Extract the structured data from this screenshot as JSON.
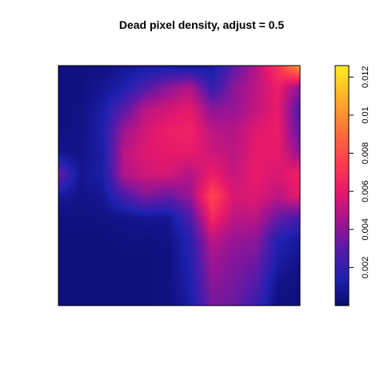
{
  "chart_data": {
    "type": "heatmap",
    "title": "Dead pixel density, adjust =  0.5",
    "xlabel": "",
    "ylabel": "",
    "axes_visible": false,
    "grid": false,
    "colorbar": {
      "position": "right",
      "range": [
        0,
        0.0126
      ],
      "ticks": [
        {
          "value": 0.002,
          "label": "0.002"
        },
        {
          "value": 0.004,
          "label": "0.004"
        },
        {
          "value": 0.006,
          "label": "0.006"
        },
        {
          "value": 0.008,
          "label": "0.008"
        },
        {
          "value": 0.01,
          "label": "0.01"
        },
        {
          "value": 0.012,
          "label": "0.012"
        }
      ],
      "colormap": [
        {
          "value": 0.0,
          "color": "#0a0a6e"
        },
        {
          "value": 0.0015,
          "color": "#1f21b0"
        },
        {
          "value": 0.003,
          "color": "#5a1aa8"
        },
        {
          "value": 0.0045,
          "color": "#a5148f"
        },
        {
          "value": 0.006,
          "color": "#e8196a"
        },
        {
          "value": 0.0075,
          "color": "#ff3c50"
        },
        {
          "value": 0.009,
          "color": "#ff6a3c"
        },
        {
          "value": 0.0105,
          "color": "#ffa12a"
        },
        {
          "value": 0.0126,
          "color": "#ffee22"
        }
      ]
    },
    "density_grid": {
      "rows": 12,
      "cols": 12,
      "origin": "top-left",
      "values": [
        [
          0.0004,
          0.0004,
          0.0005,
          0.0008,
          0.001,
          0.001,
          0.0008,
          0.001,
          0.003,
          0.0048,
          0.0072,
          0.011
        ],
        [
          0.0004,
          0.0004,
          0.0008,
          0.0014,
          0.0028,
          0.004,
          0.0048,
          0.002,
          0.004,
          0.005,
          0.0062,
          0.004
        ],
        [
          0.0004,
          0.0005,
          0.0012,
          0.003,
          0.005,
          0.0055,
          0.006,
          0.004,
          0.0042,
          0.0052,
          0.006,
          0.0026
        ],
        [
          0.0004,
          0.0005,
          0.0014,
          0.0044,
          0.0056,
          0.0062,
          0.0064,
          0.005,
          0.0048,
          0.0058,
          0.0062,
          0.003
        ],
        [
          0.0008,
          0.0006,
          0.0012,
          0.005,
          0.0058,
          0.006,
          0.006,
          0.0054,
          0.005,
          0.006,
          0.006,
          0.0042
        ],
        [
          0.0034,
          0.0008,
          0.0012,
          0.0048,
          0.0054,
          0.0056,
          0.0048,
          0.0062,
          0.0052,
          0.006,
          0.0056,
          0.0064
        ],
        [
          0.001,
          0.0006,
          0.0008,
          0.0026,
          0.0038,
          0.0032,
          0.0042,
          0.0078,
          0.0056,
          0.0058,
          0.005,
          0.006
        ],
        [
          0.0004,
          0.0004,
          0.0005,
          0.0006,
          0.0008,
          0.0008,
          0.0026,
          0.0066,
          0.005,
          0.005,
          0.0032,
          0.0024
        ],
        [
          0.0003,
          0.0003,
          0.0003,
          0.0004,
          0.0004,
          0.0005,
          0.0018,
          0.005,
          0.0042,
          0.004,
          0.0016,
          0.001
        ],
        [
          0.0003,
          0.0003,
          0.0003,
          0.0003,
          0.0003,
          0.0004,
          0.0016,
          0.0044,
          0.0038,
          0.0034,
          0.0012,
          0.0006
        ],
        [
          0.0003,
          0.0003,
          0.0003,
          0.0003,
          0.0003,
          0.0004,
          0.0014,
          0.004,
          0.0036,
          0.0028,
          0.0006,
          0.0004
        ],
        [
          0.0003,
          0.0003,
          0.0003,
          0.0003,
          0.0003,
          0.0004,
          0.0012,
          0.0036,
          0.0034,
          0.0022,
          0.0004,
          0.0003
        ]
      ]
    }
  }
}
